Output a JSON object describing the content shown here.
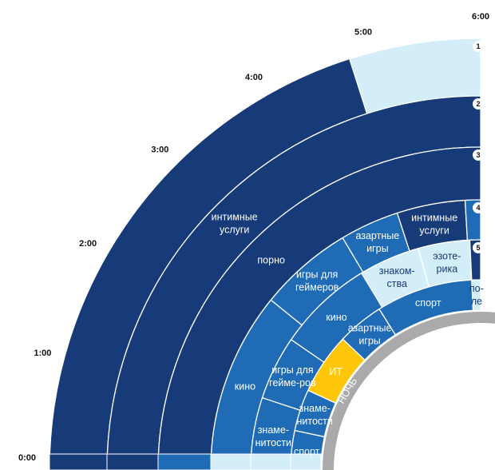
{
  "chart_data": {
    "type": "radial-segments",
    "title": "",
    "time_labels": [
      "0:00",
      "1:00",
      "2:00",
      "3:00",
      "4:00",
      "5:00",
      "6:00"
    ],
    "night_label": "НОЧЬ",
    "ring_numbers": [
      "1",
      "2",
      "3",
      "4",
      "5"
    ],
    "colors": {
      "dark": "#173a78",
      "mid": "#1f6bb5",
      "light": "#d4eef9",
      "highlight": "#ffc60a",
      "night_band": "#aaaaaa"
    },
    "rings": [
      {
        "number": "1",
        "segments": [
          {
            "label": "",
            "start_hour": 0.0,
            "end_hour": 4.82,
            "color": "dark"
          },
          {
            "label": "",
            "start_hour": 4.82,
            "end_hour": 6.0,
            "color": "light"
          }
        ]
      },
      {
        "number": "2",
        "segments": [
          {
            "label": "интимные услуги",
            "start_hour": 0.0,
            "end_hour": 6.0,
            "color": "dark"
          }
        ]
      },
      {
        "number": "3",
        "segments": [
          {
            "label": "порно",
            "start_hour": 0.0,
            "end_hour": 6.0,
            "color": "dark"
          }
        ]
      },
      {
        "number": "4",
        "segments": [
          {
            "label": "кино",
            "start_hour": 0.0,
            "end_hour": 2.6,
            "color": "mid"
          },
          {
            "label": "игры для геймеров",
            "start_hour": 2.6,
            "end_hour": 3.95,
            "color": "mid"
          },
          {
            "label": "азартные игры",
            "start_hour": 3.95,
            "end_hour": 4.8,
            "color": "mid"
          },
          {
            "label": "интимные услуги",
            "start_hour": 4.8,
            "end_hour": 5.78,
            "color": "dark"
          },
          {
            "label": "",
            "start_hour": 5.78,
            "end_hour": 6.0,
            "color": "mid"
          }
        ]
      },
      {
        "number": "5",
        "segments": [
          {
            "label": "знаме-нитости",
            "start_hour": 0.0,
            "end_hour": 1.22,
            "color": "mid"
          },
          {
            "label": "игры для гейме-ров",
            "start_hour": 1.22,
            "end_hour": 2.3,
            "color": "mid"
          },
          {
            "label": "кино",
            "start_hour": 2.3,
            "end_hour": 3.92,
            "color": "mid"
          },
          {
            "label": "знаком-ства",
            "start_hour": 3.92,
            "end_hour": 4.95,
            "color": "light"
          },
          {
            "label": "эзоте-рика",
            "start_hour": 4.95,
            "end_hour": 5.82,
            "color": "light"
          },
          {
            "label": "",
            "start_hour": 5.82,
            "end_hour": 6.0,
            "color": "dark"
          }
        ]
      },
      {
        "number": "",
        "segments": [
          {
            "label": "спорт",
            "start_hour": 0.0,
            "end_hour": 0.8,
            "color": "mid"
          },
          {
            "label": "знаме-нитости",
            "start_hour": 0.8,
            "end_hour": 1.65,
            "color": "mid"
          },
          {
            "label": "ИТ",
            "start_hour": 1.65,
            "end_hour": 2.9,
            "color": "highlight"
          },
          {
            "label": "азартные игры",
            "start_hour": 2.9,
            "end_hour": 3.85,
            "color": "mid"
          },
          {
            "label": "спорт",
            "start_hour": 3.85,
            "end_hour": 5.82,
            "color": "mid"
          },
          {
            "label": "по-ле",
            "start_hour": 5.82,
            "end_hour": 6.0,
            "color": "light"
          }
        ]
      }
    ]
  }
}
